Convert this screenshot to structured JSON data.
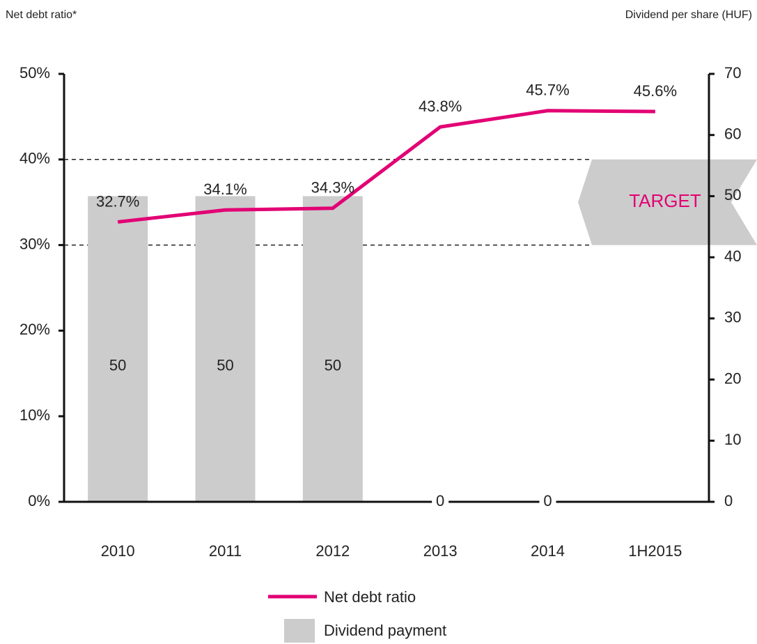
{
  "chart_data": {
    "type": "bar-line",
    "y_label": "Net debt ratio*",
    "y2_label": "Dividend per share  (HUF)",
    "categories": [
      "2010",
      "2011",
      "2012",
      "2013",
      "2014",
      "1H2015"
    ],
    "series": [
      {
        "name": "Net debt ratio",
        "type": "line",
        "color": "#e20074",
        "values": [
          32.7,
          34.1,
          34.3,
          43.8,
          45.7,
          45.6
        ],
        "value_labels": [
          "32.7%",
          "34.1%",
          "34.3%",
          "43.8%",
          "45.7%",
          "45.6%"
        ]
      },
      {
        "name": "Dividend payment",
        "type": "bar",
        "axis": "y2",
        "color": "#cccccc",
        "values": [
          50,
          50,
          50,
          0,
          0,
          null
        ]
      }
    ],
    "ylim": [
      0,
      50
    ],
    "yticks": [
      {
        "value": 0,
        "label": "0%"
      },
      {
        "value": 10,
        "label": "10%"
      },
      {
        "value": 20,
        "label": "20%"
      },
      {
        "value": 30,
        "label": "30%"
      },
      {
        "value": 40,
        "label": "40%"
      },
      {
        "value": 50,
        "label": "50%"
      }
    ],
    "y2lim": [
      0,
      70
    ],
    "y2ticks": [
      0,
      10,
      20,
      30,
      40,
      50,
      60,
      70
    ],
    "target": {
      "label": "TARGET",
      "range": [
        30,
        40
      ]
    }
  }
}
